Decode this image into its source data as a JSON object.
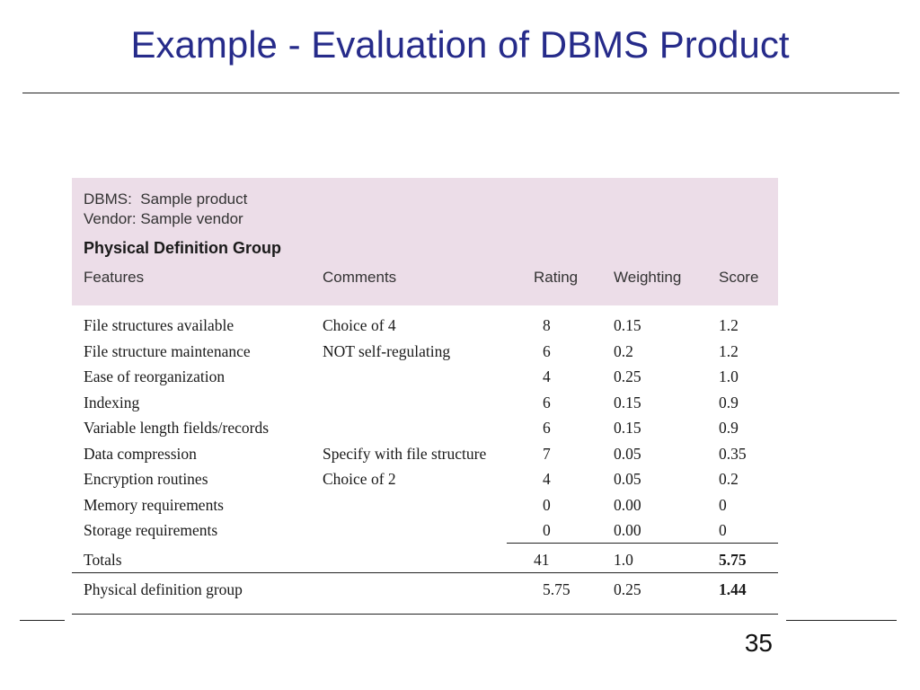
{
  "slide": {
    "title": "Example - Evaluation of DBMS Product",
    "page_number": "35"
  },
  "table": {
    "dbms_label": "DBMS:",
    "dbms_value": "Sample product",
    "vendor_label": "Vendor:",
    "vendor_value": "Sample vendor",
    "group_title": "Physical Definition Group",
    "columns": {
      "features": "Features",
      "comments": "Comments",
      "rating": "Rating",
      "weighting": "Weighting",
      "score": "Score"
    },
    "rows": [
      {
        "feature": "File structures available",
        "comment": "Choice of 4",
        "rating": "8",
        "weighting": "0.15",
        "score": "1.2"
      },
      {
        "feature": "File structure maintenance",
        "comment": "NOT self-regulating",
        "rating": "6",
        "weighting": "0.2",
        "score": "1.2"
      },
      {
        "feature": "Ease of reorganization",
        "comment": "",
        "rating": "4",
        "weighting": "0.25",
        "score": "1.0"
      },
      {
        "feature": "Indexing",
        "comment": "",
        "rating": "6",
        "weighting": "0.15",
        "score": "0.9"
      },
      {
        "feature": "Variable length fields/records",
        "comment": "",
        "rating": "6",
        "weighting": "0.15",
        "score": "0.9"
      },
      {
        "feature": "Data compression",
        "comment": "Specify with file structure",
        "rating": "7",
        "weighting": "0.05",
        "score": "0.35"
      },
      {
        "feature": "Encryption routines",
        "comment": "Choice of 2",
        "rating": "4",
        "weighting": "0.05",
        "score": "0.2"
      },
      {
        "feature": "Memory requirements",
        "comment": "",
        "rating": "0",
        "weighting": "0.00",
        "score": "0"
      },
      {
        "feature": "Storage requirements",
        "comment": "",
        "rating": "0",
        "weighting": "0.00",
        "score": "0"
      }
    ],
    "totals": {
      "label": "Totals",
      "rating": "41",
      "weighting": "1.0",
      "score": "5.75"
    },
    "group_summary": {
      "label": "Physical definition group",
      "rating": "5.75",
      "weighting": "0.25",
      "score": "1.44"
    },
    "colors": {
      "header_background": "#ecdde8",
      "title_color": "#262b8a"
    }
  }
}
